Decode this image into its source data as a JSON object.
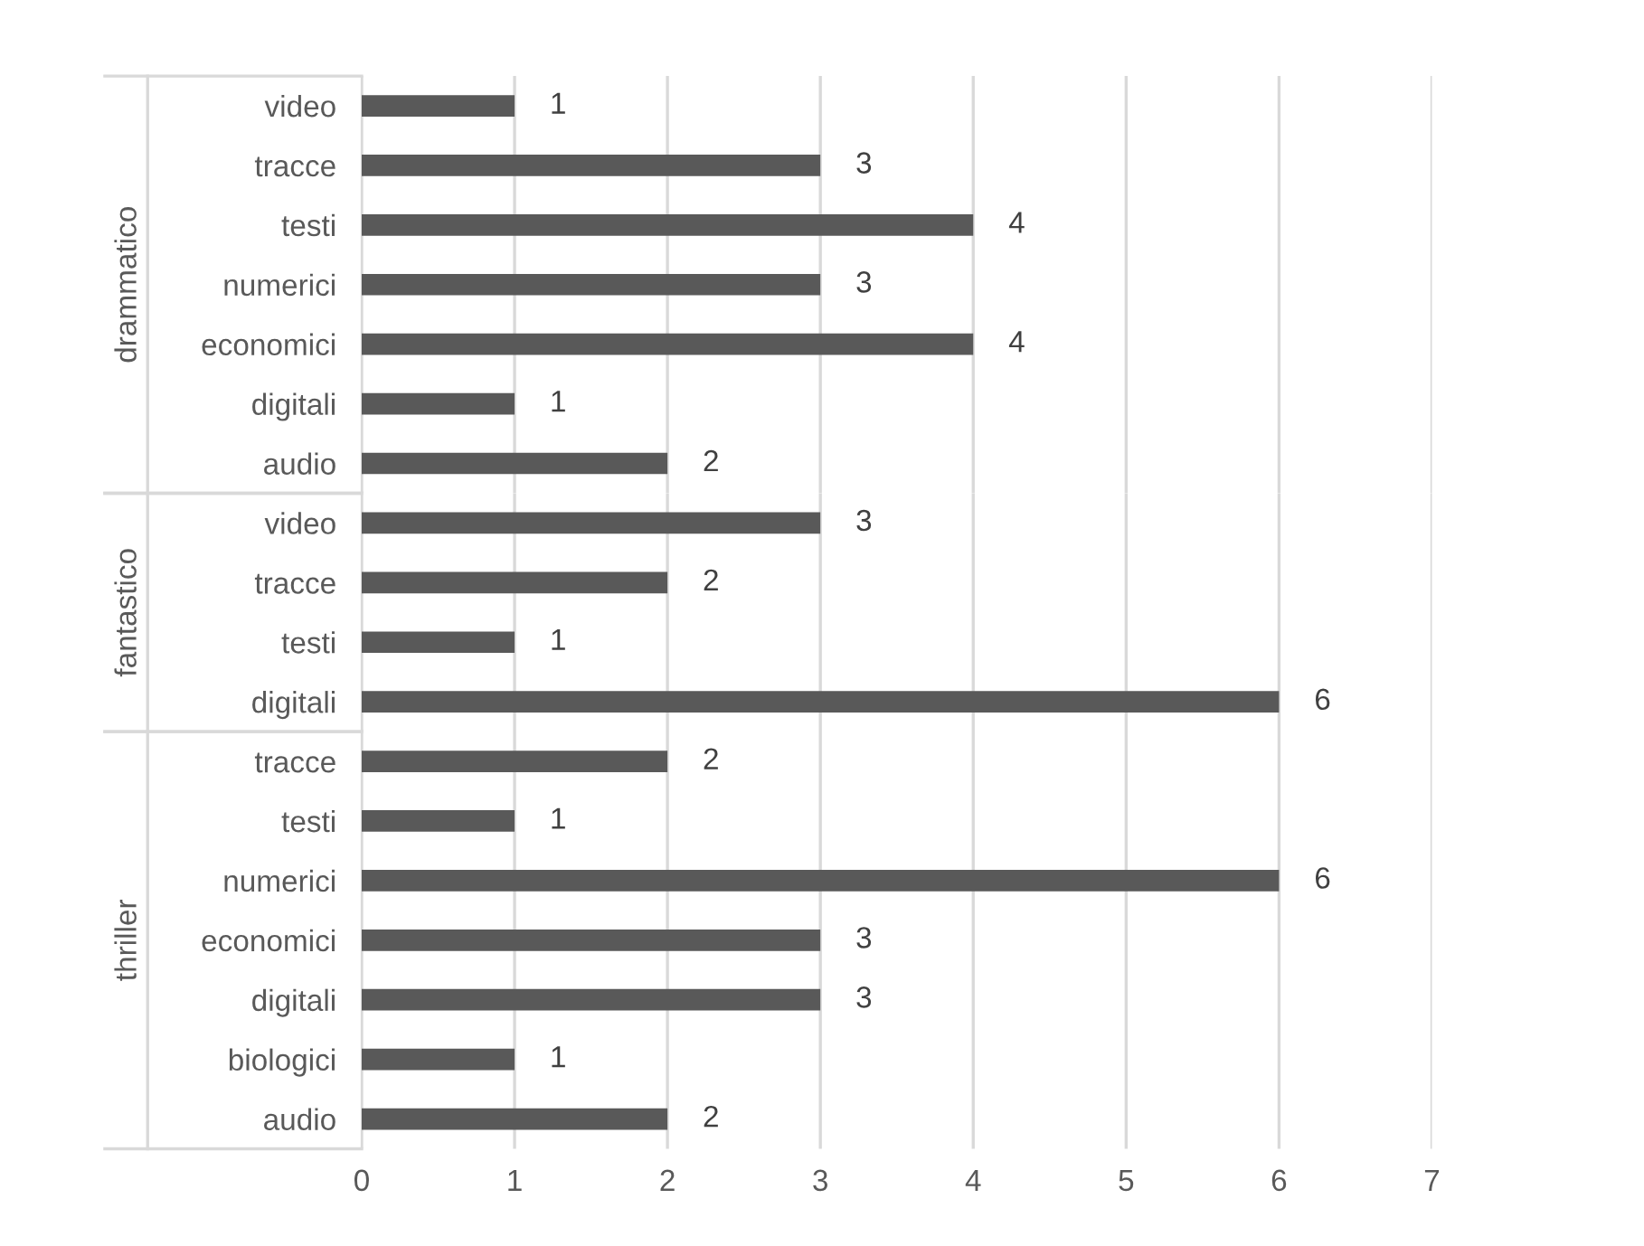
{
  "chart_data": [
    {
      "type": "bar",
      "orientation": "horizontal",
      "ylabel": "drammatico",
      "categories": [
        "video",
        "tracce",
        "testi",
        "numerici",
        "economici",
        "digitali",
        "audio"
      ],
      "values": [
        1,
        3,
        4,
        3,
        4,
        1,
        2
      ],
      "color": "#595959",
      "xlim": [
        0,
        7
      ],
      "xticks": [
        0,
        1,
        2,
        3,
        4,
        5,
        6,
        7
      ],
      "grid": "x",
      "data_labels": true,
      "tick_labels": "y"
    },
    {
      "type": "bar",
      "orientation": "horizontal",
      "ylabel": "fantastico",
      "categories": [
        "video",
        "tracce",
        "testi",
        "digitali"
      ],
      "values": [
        3,
        2,
        1,
        6
      ],
      "color": "#595959",
      "xlim": [
        0,
        7
      ],
      "xticks": [
        0,
        1,
        2,
        3,
        4,
        5,
        6,
        7
      ],
      "grid": "x",
      "data_labels": true,
      "tick_labels": "y"
    },
    {
      "type": "bar",
      "orientation": "horizontal",
      "ylabel": "thriller",
      "categories": [
        "tracce",
        "testi",
        "numerici",
        "economici",
        "digitali",
        "biologici",
        "audio"
      ],
      "values": [
        2,
        1,
        6,
        3,
        3,
        1,
        2
      ],
      "color": "#595959",
      "xlim": [
        0,
        7
      ],
      "xticks": [
        0,
        1,
        2,
        3,
        4,
        5,
        6,
        7
      ],
      "grid": "x",
      "data_labels": true
    }
  ]
}
